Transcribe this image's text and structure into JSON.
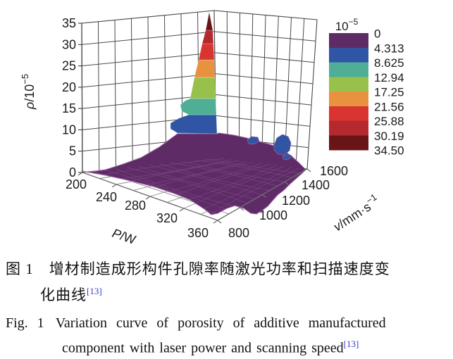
{
  "figure": {
    "caption_zh_line1": "图 1　增材制造成形构件孔隙率随激光功率和扫描速度变",
    "caption_zh_line2": "化曲线",
    "caption_zh_ref": "[13]",
    "caption_en_fig": "Fig. 1",
    "caption_en_line1": "Variation curve of porosity of additive manufactured",
    "caption_en_line2": "component with laser power and scanning speed",
    "caption_en_ref": "[13]",
    "ref_color": "#3535cf"
  },
  "chart_data": {
    "type": "surface",
    "title": "",
    "x_axis": {
      "label": "P/W",
      "ticks": [
        "200",
        "240",
        "280",
        "320",
        "360"
      ],
      "range": [
        200,
        360
      ]
    },
    "y_axis": {
      "label": "v/mm·s⁻¹",
      "label_base": "v/mm·s",
      "label_sup": "−1",
      "ticks": [
        "800",
        "1000",
        "1200",
        "1400",
        "1600"
      ],
      "range": [
        800,
        1600
      ]
    },
    "z_axis": {
      "label": "ρ/10⁻⁵",
      "label_base": "ρ/10",
      "label_sup": "−5",
      "ticks": [
        "0",
        "5",
        "10",
        "15",
        "20",
        "25",
        "30",
        "35"
      ],
      "range": [
        0,
        35
      ]
    },
    "colorbar": {
      "title": "10⁻⁵",
      "title_base": "10",
      "title_sup": "−5",
      "levels": [
        "0",
        "4.313",
        "8.625",
        "12.94",
        "17.25",
        "21.56",
        "25.88",
        "30.19",
        "34.50"
      ],
      "colors": [
        "#5e2b67",
        "#2f55a4",
        "#4fae96",
        "#97c14b",
        "#e8923f",
        "#d93430",
        "#b3292e",
        "#691518"
      ]
    },
    "surface_summary": {
      "peak": {
        "P": 200,
        "v": 1500,
        "rho": 34.5
      },
      "secondary_bump": {
        "P": 340,
        "v": 1450,
        "rho": 6
      },
      "baseline_rho": 1
    },
    "porosity_grid_approx": {
      "note": "values estimated from surface heights and color bands",
      "P": [
        200,
        240,
        280,
        320,
        360
      ],
      "v": [
        800,
        1000,
        1200,
        1400,
        1600
      ],
      "rho_1e-5": [
        [
          0.5,
          1,
          2,
          8,
          34.5
        ],
        [
          0.5,
          1,
          1.5,
          3,
          6
        ],
        [
          0.5,
          1,
          1,
          2,
          3
        ],
        [
          0.5,
          1,
          1,
          2,
          6
        ],
        [
          0.5,
          1,
          1.5,
          3,
          4
        ]
      ]
    }
  }
}
